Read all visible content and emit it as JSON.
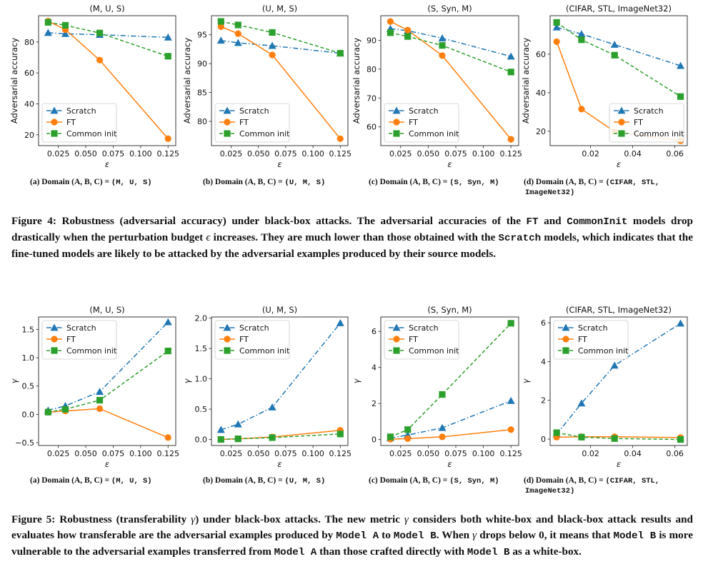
{
  "colors": {
    "scratch": "#1f77b4",
    "ft": "#ff7f0e",
    "common": "#2ca02c"
  },
  "legend": [
    "Scratch",
    "FT",
    "Common init"
  ],
  "chart_data": [
    {
      "type": "line",
      "title": "(M, U, S)",
      "xlabel": "ε",
      "ylabel": "Adversarial accuracy",
      "xlim": [
        0.007,
        0.132
      ],
      "ylim": [
        13,
        97
      ],
      "xticks": [
        0.025,
        0.05,
        0.075,
        0.1,
        0.125
      ],
      "xtick_labels": [
        "0.025",
        "0.050",
        "0.075",
        "0.100",
        "0.125"
      ],
      "yticks": [
        20,
        40,
        60,
        80
      ],
      "ytick_labels": [
        "20",
        "40",
        "60",
        "80"
      ],
      "x": [
        0.0157,
        0.0314,
        0.0627,
        0.125
      ],
      "series": [
        {
          "name": "Scratch",
          "values": [
            86,
            85.3,
            84.7,
            83
          ]
        },
        {
          "name": "FT",
          "values": [
            93.5,
            88,
            68.3,
            17.5
          ]
        },
        {
          "name": "Common init",
          "values": [
            92.7,
            90.8,
            85.8,
            70.8
          ]
        }
      ],
      "legend_loc": "lower left"
    },
    {
      "type": "line",
      "title": "(U, M, S)",
      "xlabel": "ε",
      "ylabel": "Adversarial accuracy",
      "xlim": [
        0.007,
        0.132
      ],
      "ylim": [
        75.8,
        98.3
      ],
      "xticks": [
        0.025,
        0.05,
        0.075,
        0.1,
        0.125
      ],
      "xtick_labels": [
        "0.025",
        "0.050",
        "0.075",
        "0.100",
        "0.125"
      ],
      "yticks": [
        80,
        85,
        90,
        95
      ],
      "ytick_labels": [
        "80",
        "85",
        "90",
        "95"
      ],
      "x": [
        0.0157,
        0.0314,
        0.0627,
        0.125
      ],
      "series": [
        {
          "name": "Scratch",
          "values": [
            94,
            93.6,
            93.1,
            91.8
          ]
        },
        {
          "name": "FT",
          "values": [
            96.4,
            95.2,
            91.5,
            77
          ]
        },
        {
          "name": "Common init",
          "values": [
            97.3,
            96.7,
            95.4,
            91.8
          ]
        }
      ],
      "legend_loc": "lower left"
    },
    {
      "type": "line",
      "title": "(S, Syn, M)",
      "xlabel": "ε",
      "ylabel": "Adversarial accuracy",
      "xlim": [
        0.007,
        0.132
      ],
      "ylim": [
        53.5,
        98.5
      ],
      "xticks": [
        0.025,
        0.05,
        0.075,
        0.1,
        0.125
      ],
      "xtick_labels": [
        "0.025",
        "0.050",
        "0.075",
        "0.100",
        "0.125"
      ],
      "yticks": [
        60,
        70,
        80,
        90
      ],
      "ytick_labels": [
        "60",
        "70",
        "80",
        "90"
      ],
      "x": [
        0.0157,
        0.0314,
        0.0627,
        0.125
      ],
      "series": [
        {
          "name": "Scratch",
          "values": [
            94,
            93.3,
            90.7,
            84.4
          ]
        },
        {
          "name": "FT",
          "values": [
            96.5,
            93.5,
            84.7,
            55.7
          ]
        },
        {
          "name": "Common init",
          "values": [
            92.6,
            91.3,
            88.2,
            79
          ]
        }
      ],
      "legend_loc": "lower left"
    },
    {
      "type": "line",
      "title": "(CIFAR, STL, ImageNet32)",
      "xlabel": "ε",
      "ylabel": "Adversarial accuracy",
      "xlim": [
        0.0008,
        0.0659
      ],
      "ylim": [
        12.5,
        80
      ],
      "xticks": [
        0.02,
        0.04,
        0.06
      ],
      "xtick_labels": [
        "0.02",
        "0.04",
        "0.06"
      ],
      "yticks": [
        20,
        40,
        60
      ],
      "ytick_labels": [
        "20",
        "40",
        "60"
      ],
      "x": [
        0.0039,
        0.0157,
        0.0314,
        0.0627
      ],
      "series": [
        {
          "name": "Scratch",
          "values": [
            74,
            70.5,
            65,
            54
          ]
        },
        {
          "name": "FT",
          "values": [
            66.5,
            31.5,
            19.8,
            15
          ]
        },
        {
          "name": "Common init",
          "values": [
            76.5,
            67.5,
            59.5,
            38
          ]
        }
      ],
      "legend_loc": "lower right"
    },
    {
      "type": "line",
      "title": "(M, U, S)",
      "xlabel": "ε",
      "ylabel": "γ",
      "xlim": [
        0.007,
        0.132
      ],
      "ylim": [
        -0.55,
        1.72
      ],
      "xticks": [
        0.025,
        0.05,
        0.075,
        0.1,
        0.125
      ],
      "xtick_labels": [
        "0.025",
        "0.050",
        "0.075",
        "0.100",
        "0.125"
      ],
      "yticks": [
        -0.5,
        0,
        0.5,
        1,
        1.5
      ],
      "ytick_labels": [
        "−0.5",
        "0.0",
        "0.5",
        "1.0",
        "1.5"
      ],
      "x": [
        0.0157,
        0.0314,
        0.0627,
        0.125
      ],
      "series": [
        {
          "name": "Scratch",
          "values": [
            0.07,
            0.15,
            0.4,
            1.63
          ]
        },
        {
          "name": "FT",
          "values": [
            0.04,
            0.06,
            0.1,
            -0.41
          ]
        },
        {
          "name": "Common init",
          "values": [
            0.04,
            0.09,
            0.25,
            1.12
          ]
        }
      ],
      "legend_loc": "upper left"
    },
    {
      "type": "line",
      "title": "(U, M, S)",
      "xlabel": "ε",
      "ylabel": "γ",
      "xlim": [
        0.007,
        0.132
      ],
      "ylim": [
        -0.1,
        2.02
      ],
      "xticks": [
        0.025,
        0.05,
        0.075,
        0.1,
        0.125
      ],
      "xtick_labels": [
        "0.025",
        "0.050",
        "0.075",
        "0.100",
        "0.125"
      ],
      "yticks": [
        0,
        0.5,
        1,
        1.5,
        2
      ],
      "ytick_labels": [
        "0.0",
        "0.5",
        "1.0",
        "1.5",
        "2.0"
      ],
      "x": [
        0.0157,
        0.0314,
        0.0627,
        0.125
      ],
      "series": [
        {
          "name": "Scratch",
          "values": [
            0.16,
            0.25,
            0.53,
            1.92
          ]
        },
        {
          "name": "FT",
          "values": [
            0.0,
            0.01,
            0.04,
            0.15
          ]
        },
        {
          "name": "Common init",
          "values": [
            0.0,
            0.01,
            0.03,
            0.09
          ]
        }
      ],
      "legend_loc": "upper left"
    },
    {
      "type": "line",
      "title": "(S, Syn, M)",
      "xlabel": "ε",
      "ylabel": "γ",
      "xlim": [
        0.007,
        0.132
      ],
      "ylim": [
        -0.33,
        6.8
      ],
      "xticks": [
        0.025,
        0.05,
        0.075,
        0.1,
        0.125
      ],
      "xtick_labels": [
        "0.025",
        "0.050",
        "0.075",
        "0.100",
        "0.125"
      ],
      "yticks": [
        0,
        2,
        4,
        6
      ],
      "ytick_labels": [
        "0",
        "2",
        "4",
        "6"
      ],
      "x": [
        0.0157,
        0.0314,
        0.0627,
        0.125
      ],
      "series": [
        {
          "name": "Scratch",
          "values": [
            0.08,
            0.25,
            0.65,
            2.15
          ]
        },
        {
          "name": "FT",
          "values": [
            0.02,
            0.05,
            0.15,
            0.55
          ]
        },
        {
          "name": "Common init",
          "values": [
            0.15,
            0.55,
            2.5,
            6.45
          ]
        }
      ],
      "legend_loc": "upper left"
    },
    {
      "type": "line",
      "title": "(CIFAR, STL, ImageNet32)",
      "xlabel": "ε",
      "ylabel": "γ",
      "xlim": [
        0.0008,
        0.0659
      ],
      "ylim": [
        -0.33,
        6.3
      ],
      "xticks": [
        0.02,
        0.04,
        0.06
      ],
      "xtick_labels": [
        "0.02",
        "0.04",
        "0.06"
      ],
      "yticks": [
        0,
        2,
        4,
        6
      ],
      "ytick_labels": [
        "0",
        "2",
        "4",
        "6"
      ],
      "x": [
        0.0039,
        0.0157,
        0.0314,
        0.0627
      ],
      "series": [
        {
          "name": "Scratch",
          "values": [
            0.25,
            1.85,
            3.8,
            5.97
          ]
        },
        {
          "name": "FT",
          "values": [
            0.1,
            0.12,
            0.12,
            0.08
          ]
        },
        {
          "name": "Common init",
          "values": [
            0.33,
            0.1,
            0.03,
            -0.02
          ]
        }
      ],
      "legend_loc": "upper left"
    }
  ],
  "subcaptions_row1": {
    "a": {
      "pre": "(a) Domain (A, B, C) = ",
      "code": "(M, U, S)"
    },
    "b": {
      "pre": "(b) Domain (A, B, C) = ",
      "code": "(U, M, S)"
    },
    "c": {
      "pre": "(c) Domain (A, B, C) = ",
      "code": "(S, Syn, M)"
    },
    "d": {
      "pre": "(d)  Domain  (A,  B,  C)  =  ",
      "code": "(CIFAR,  STL,",
      "code2": "ImageNet32)"
    }
  },
  "subcaptions_row2": {
    "a": {
      "pre": "(a) Domain (A, B, C) = ",
      "code": "(M, U, S)"
    },
    "b": {
      "pre": "(b) Domain (A, B, C) = ",
      "code": "(U, M, S)"
    },
    "c": {
      "pre": "(c) Domain (A, B, C) = ",
      "code": "(S, Syn, M)"
    },
    "d": {
      "pre": "(d)  Domain  (A,  B,  C)  =  ",
      "code": "(CIFAR,  STL,",
      "code2": "ImageNet32)"
    }
  },
  "figure4": {
    "t1": "Figure 4: Robustness (adversarial accuracy) under black-box attacks. The adversarial accuracies of the ",
    "c1": "FT",
    "t2": " and ",
    "c2": "CommonInit",
    "t3": " models drop drastically when the perturbation budget ",
    "eps": "ϵ",
    "t4": " increases. They are much lower than those obtained with the ",
    "c3": "Scratch",
    "t5": " models, which indicates that the fine-tuned models are likely to be attacked by the adversarial examples produced by their source models."
  },
  "figure5": {
    "t1": "Figure 5: Robustness (transferability ",
    "g1": "γ",
    "t2": ") under black-box attacks. The new metric ",
    "g2": "γ",
    "t3": " considers both white-box and black-box attack results and evaluates how transferable are the adversarial examples produced by ",
    "c1": "Model A",
    "t4": " to ",
    "c2": "Model B",
    "t5": ". When ",
    "g3": "γ",
    "t6": " drops below 0, it means that ",
    "c3": "Model B",
    "t7": " is more vulnerable to the adversarial examples transferred from ",
    "c4": "Model A",
    "t8": " than those crafted directly with ",
    "c5": "Model B",
    "t9": " as a white-box."
  }
}
